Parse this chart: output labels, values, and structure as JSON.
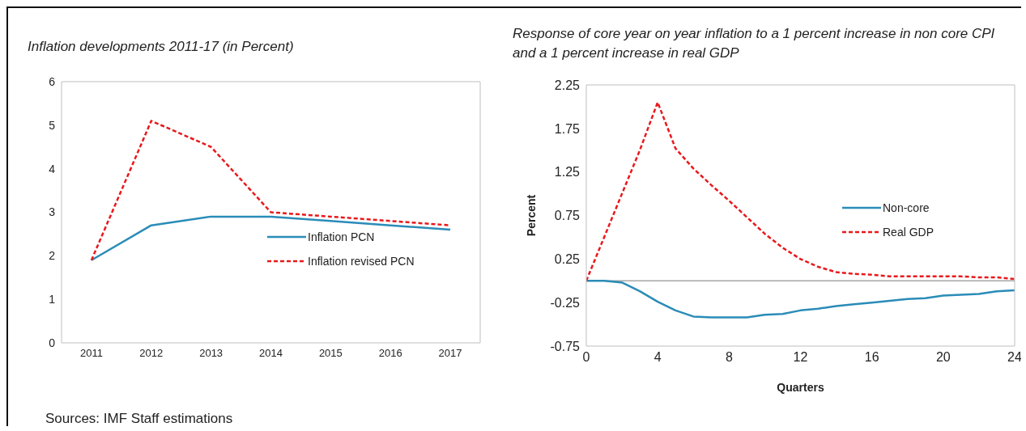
{
  "chart_data": [
    {
      "type": "line",
      "title": "Inflation developments 2011-17 (in Percent)",
      "categories": [
        "2011",
        "2012",
        "2013",
        "2014",
        "2015",
        "2016",
        "2017"
      ],
      "ylim": [
        0,
        6
      ],
      "yticks": [
        0,
        1,
        2,
        3,
        4,
        5,
        6
      ],
      "legend": "right",
      "series": [
        {
          "name": "Inflation PCN",
          "color": "#2a8cb8",
          "line_style": "solid",
          "values": [
            1.9,
            2.7,
            2.9,
            2.9,
            2.8,
            2.7,
            2.6
          ]
        },
        {
          "name": "Inflation revised PCN",
          "color": "#e8191c",
          "line_style": "dashed",
          "values": [
            1.9,
            5.1,
            4.5,
            3.0,
            2.9,
            2.8,
            2.7
          ]
        }
      ],
      "annotations": [
        "Sources: IMF Staff estimations"
      ]
    },
    {
      "type": "line",
      "title": "Response of core year on year inflation to a 1 percent increase in non core CPI and a 1 percent increase in real GDP",
      "xlabel": "Quarters",
      "ylabel": "Percent",
      "x": [
        0,
        1,
        2,
        3,
        4,
        5,
        6,
        7,
        8,
        9,
        10,
        11,
        12,
        13,
        14,
        15,
        16,
        17,
        18,
        19,
        20,
        21,
        22,
        23,
        24
      ],
      "xlim": [
        0,
        24
      ],
      "xticks": [
        0,
        4,
        8,
        12,
        16,
        20,
        24
      ],
      "ylim": [
        -0.75,
        2.25
      ],
      "yticks": [
        -0.75,
        -0.25,
        0.25,
        0.75,
        1.25,
        1.75,
        2.25
      ],
      "legend": "right",
      "ref_lines": [
        {
          "axis": "y",
          "value": 0,
          "color": "#a6a6a6"
        }
      ],
      "series": [
        {
          "name": "Non-core",
          "color": "#2a8cb8",
          "line_style": "solid",
          "values": [
            0,
            0,
            -0.02,
            -0.12,
            -0.24,
            -0.34,
            -0.41,
            -0.42,
            -0.42,
            -0.42,
            -0.39,
            -0.38,
            -0.34,
            -0.32,
            -0.29,
            -0.27,
            -0.25,
            -0.23,
            -0.21,
            -0.2,
            -0.17,
            -0.16,
            -0.15,
            -0.12,
            -0.11
          ]
        },
        {
          "name": "Real GDP",
          "color": "#e8191c",
          "line_style": "dashed",
          "values": [
            0,
            0.5,
            1.0,
            1.5,
            2.05,
            1.52,
            1.29,
            1.1,
            0.92,
            0.73,
            0.54,
            0.38,
            0.25,
            0.16,
            0.1,
            0.08,
            0.07,
            0.05,
            0.05,
            0.05,
            0.05,
            0.05,
            0.04,
            0.04,
            0.02
          ]
        }
      ]
    }
  ]
}
